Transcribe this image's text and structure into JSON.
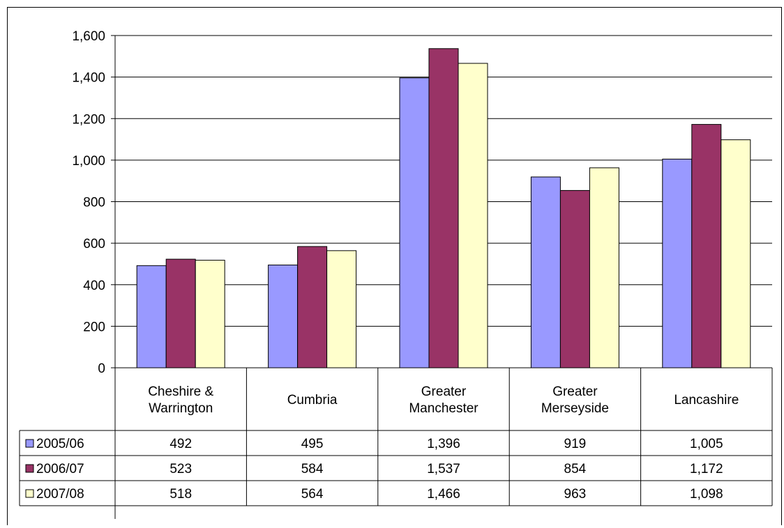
{
  "chart_data": {
    "type": "bar",
    "categories": [
      [
        "Cheshire &",
        "Warrington"
      ],
      [
        "Cumbria"
      ],
      [
        "Greater",
        "Manchester"
      ],
      [
        "Greater",
        "Merseyside"
      ],
      [
        "Lancashire"
      ]
    ],
    "series": [
      {
        "name": "2005/06",
        "color": "#9999ff",
        "values": [
          492,
          495,
          1396,
          919,
          1005
        ],
        "display": [
          "492",
          "495",
          "1,396",
          "919",
          "1,005"
        ]
      },
      {
        "name": "2006/07",
        "color": "#993366",
        "values": [
          523,
          584,
          1537,
          854,
          1172
        ],
        "display": [
          "523",
          "584",
          "1,537",
          "854",
          "1,172"
        ]
      },
      {
        "name": "2007/08",
        "color": "#ffffcc",
        "values": [
          518,
          564,
          1466,
          963,
          1098
        ],
        "display": [
          "518",
          "564",
          "1,466",
          "963",
          "1,098"
        ]
      }
    ],
    "ylim": [
      0,
      1600
    ],
    "yticks": [
      0,
      200,
      400,
      600,
      800,
      1000,
      1200,
      1400,
      1600
    ],
    "ytick_labels": [
      "0",
      "200",
      "400",
      "600",
      "800",
      "1,000",
      "1,200",
      "1,400",
      "1,600"
    ],
    "grid": true,
    "legend": "data-table",
    "title": "",
    "xlabel": "",
    "ylabel": ""
  }
}
